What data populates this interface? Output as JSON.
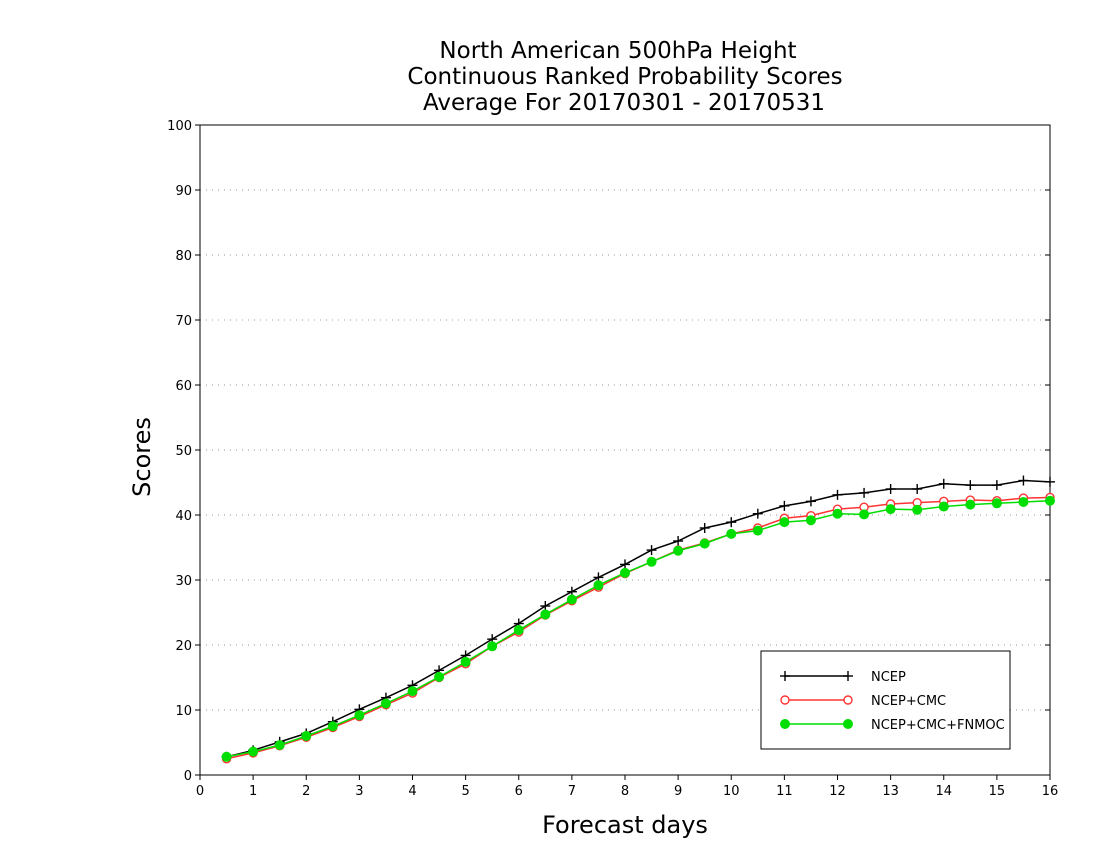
{
  "chart_data": {
    "type": "line",
    "title_lines": [
      "North American 500hPa Height",
      "Continuous Ranked Probability Scores",
      "Average For 20170301 - 20170531"
    ],
    "xlabel": "Forecast days",
    "ylabel": "Scores",
    "xlim": [
      0,
      16
    ],
    "ylim": [
      0,
      100
    ],
    "xticks": [
      0,
      1,
      2,
      3,
      4,
      5,
      6,
      7,
      8,
      9,
      10,
      11,
      12,
      13,
      14,
      15,
      16
    ],
    "yticks": [
      0,
      10,
      20,
      30,
      40,
      50,
      60,
      70,
      80,
      90,
      100
    ],
    "grid": "horizontal dotted",
    "legend_position": "bottom-right",
    "x": [
      0.5,
      1,
      1.5,
      2,
      2.5,
      3,
      3.5,
      4,
      4.5,
      5,
      5.5,
      6,
      6.5,
      7,
      7.5,
      8,
      8.5,
      9,
      9.5,
      10,
      10.5,
      11,
      11.5,
      12,
      12.5,
      13,
      13.5,
      14,
      14.5,
      15,
      15.5,
      16
    ],
    "series": [
      {
        "name": "NCEP",
        "color": "#000000",
        "marker": "plus",
        "values": [
          2.8,
          3.8,
          5.1,
          6.4,
          8.2,
          10.1,
          11.9,
          13.8,
          16.1,
          18.4,
          20.9,
          23.3,
          26.0,
          28.2,
          30.4,
          32.4,
          34.6,
          36.0,
          38.0,
          38.9,
          40.2,
          41.4,
          42.1,
          43.1,
          43.4,
          44.0,
          44.0,
          44.8,
          44.6,
          44.6,
          45.3,
          45.1
        ]
      },
      {
        "name": "NCEP+CMC",
        "color": "#ff3333",
        "marker": "open-circle",
        "values": [
          2.5,
          3.4,
          4.5,
          5.8,
          7.3,
          9.0,
          10.8,
          12.6,
          15.0,
          17.1,
          19.8,
          22.0,
          24.6,
          26.8,
          28.9,
          31.0,
          32.8,
          34.6,
          35.7,
          37.1,
          38.0,
          39.5,
          39.9,
          40.9,
          41.2,
          41.7,
          41.9,
          42.1,
          42.3,
          42.2,
          42.6,
          42.7
        ]
      },
      {
        "name": "NCEP+CMC+FNMOC",
        "color": "#00dd00",
        "marker": "filled-circle",
        "values": [
          2.8,
          3.6,
          4.6,
          6.0,
          7.5,
          9.2,
          11.0,
          12.9,
          15.1,
          17.4,
          19.8,
          22.3,
          24.7,
          27.0,
          29.2,
          31.1,
          32.8,
          34.5,
          35.6,
          37.1,
          37.6,
          38.9,
          39.2,
          40.2,
          40.1,
          40.9,
          40.8,
          41.3,
          41.6,
          41.8,
          42.0,
          42.2
        ]
      }
    ]
  }
}
